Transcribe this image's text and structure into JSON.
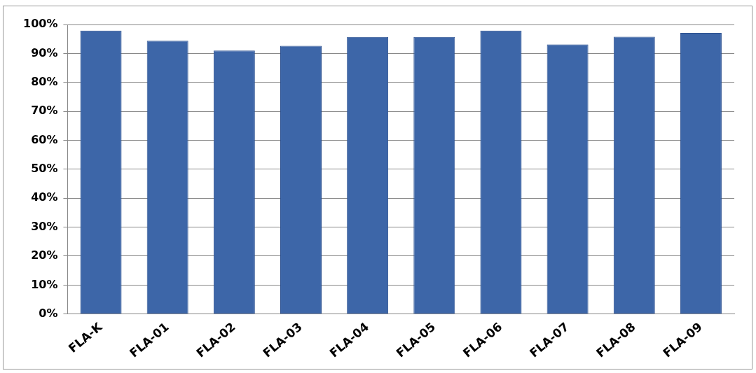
{
  "chart_data": {
    "type": "bar",
    "categories": [
      "FLA-K",
      "FLA-01",
      "FLA-02",
      "FLA-03",
      "FLA-04",
      "FLA-05",
      "FLA-06",
      "FLA-07",
      "FLA-08",
      "FLA-09"
    ],
    "values": [
      97.9,
      94.4,
      91.0,
      92.6,
      95.7,
      95.7,
      97.9,
      93.1,
      95.8,
      97.1
    ],
    "color": "#3d66a8",
    "ylim": [
      0,
      100
    ],
    "yticks": [
      {
        "value": 0,
        "label": "0%"
      },
      {
        "value": 10,
        "label": "10%"
      },
      {
        "value": 20,
        "label": "20%"
      },
      {
        "value": 30,
        "label": "30%"
      },
      {
        "value": 40,
        "label": "40%"
      },
      {
        "value": 50,
        "label": "50%"
      },
      {
        "value": 60,
        "label": "60%"
      },
      {
        "value": 70,
        "label": "70%"
      },
      {
        "value": 80,
        "label": "80%"
      },
      {
        "value": 90,
        "label": "90%"
      },
      {
        "value": 100,
        "label": "100%"
      }
    ],
    "grid": "y"
  }
}
